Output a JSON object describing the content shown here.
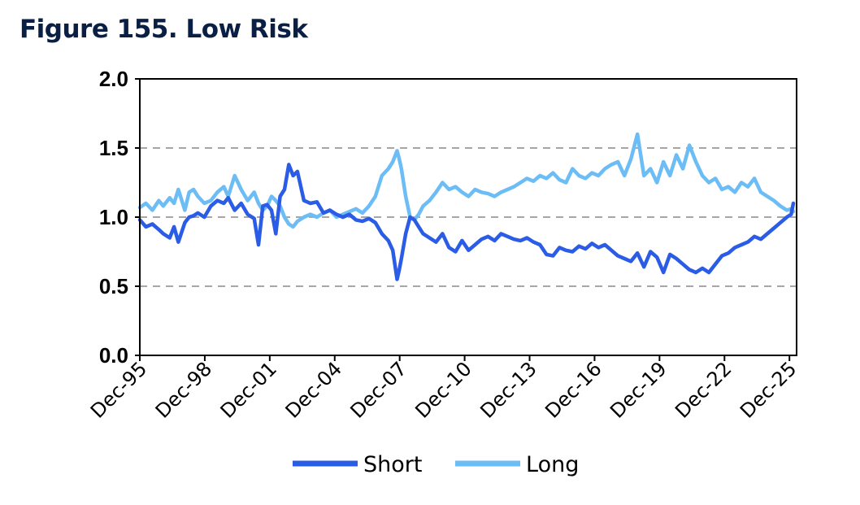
{
  "figure": {
    "title": "Figure 155. Low Risk"
  },
  "colors": {
    "short": "#2b5ce6",
    "long": "#6cbdf5",
    "grid": "#a6a6a6",
    "axis": "#000000"
  },
  "chart_data": {
    "type": "line",
    "title": "Figure 155. Low Risk",
    "xlabel": "",
    "ylabel": "",
    "x_range": [
      1995.92,
      2026.25
    ],
    "ylim": [
      0,
      2.0
    ],
    "yticks": [
      "0.0",
      "0.5",
      "1.0",
      "1.5",
      "2.0"
    ],
    "xticks": [
      "Dec-95",
      "Dec-98",
      "Dec-01",
      "Dec-04",
      "Dec-07",
      "Dec-10",
      "Dec-13",
      "Dec-16",
      "Dec-19",
      "Dec-22",
      "Dec-25"
    ],
    "grid": "horizontal dashed",
    "legend": "bottom",
    "series": [
      {
        "name": "Short",
        "color": "#2b5ce6",
        "x": [
          1995.92,
          1996.2,
          1996.5,
          1996.8,
          1997.0,
          1997.3,
          1997.5,
          1997.7,
          1998.0,
          1998.2,
          1998.4,
          1998.6,
          1998.9,
          1999.2,
          1999.5,
          1999.8,
          2000.0,
          2000.3,
          2000.6,
          2000.9,
          2001.2,
          2001.4,
          2001.6,
          2001.8,
          2002.0,
          2002.2,
          2002.4,
          2002.6,
          2002.8,
          2003.0,
          2003.2,
          2003.5,
          2003.8,
          2004.1,
          2004.4,
          2004.7,
          2005.0,
          2005.3,
          2005.6,
          2005.9,
          2006.2,
          2006.5,
          2006.8,
          2007.1,
          2007.4,
          2007.6,
          2007.8,
          2007.9,
          2008.0,
          2008.2,
          2008.4,
          2008.6,
          2008.8,
          2009.0,
          2009.3,
          2009.6,
          2009.9,
          2010.2,
          2010.5,
          2010.8,
          2011.1,
          2011.4,
          2011.7,
          2012.0,
          2012.3,
          2012.6,
          2012.9,
          2013.2,
          2013.5,
          2013.8,
          2014.1,
          2014.4,
          2014.7,
          2015.0,
          2015.3,
          2015.6,
          2015.9,
          2016.2,
          2016.5,
          2016.8,
          2017.1,
          2017.4,
          2017.7,
          2018.0,
          2018.3,
          2018.6,
          2018.9,
          2019.2,
          2019.5,
          2019.8,
          2020.1,
          2020.4,
          2020.7,
          2021.0,
          2021.3,
          2021.6,
          2021.9,
          2022.2,
          2022.5,
          2022.8,
          2023.1,
          2023.4,
          2023.7,
          2024.0,
          2024.3,
          2024.6,
          2024.9,
          2025.2,
          2025.5,
          2025.8,
          2026.0,
          2026.1
        ],
        "y": [
          0.98,
          0.93,
          0.95,
          0.91,
          0.88,
          0.85,
          0.93,
          0.82,
          0.96,
          1.0,
          1.01,
          1.03,
          1.0,
          1.08,
          1.12,
          1.1,
          1.14,
          1.05,
          1.1,
          1.02,
          0.99,
          0.8,
          1.08,
          1.09,
          1.05,
          0.88,
          1.15,
          1.2,
          1.38,
          1.3,
          1.33,
          1.12,
          1.1,
          1.11,
          1.03,
          1.05,
          1.02,
          1.0,
          1.02,
          0.98,
          0.97,
          0.99,
          0.96,
          0.88,
          0.83,
          0.76,
          0.55,
          0.62,
          0.7,
          0.88,
          1.0,
          0.98,
          0.93,
          0.88,
          0.85,
          0.82,
          0.88,
          0.78,
          0.75,
          0.83,
          0.76,
          0.8,
          0.84,
          0.86,
          0.83,
          0.88,
          0.86,
          0.84,
          0.83,
          0.85,
          0.82,
          0.8,
          0.73,
          0.72,
          0.78,
          0.76,
          0.75,
          0.79,
          0.77,
          0.81,
          0.78,
          0.8,
          0.76,
          0.72,
          0.7,
          0.68,
          0.74,
          0.64,
          0.75,
          0.71,
          0.6,
          0.73,
          0.7,
          0.66,
          0.62,
          0.6,
          0.63,
          0.6,
          0.66,
          0.72,
          0.74,
          0.78,
          0.8,
          0.82,
          0.86,
          0.84,
          0.88,
          0.92,
          0.96,
          1.0,
          1.02,
          1.1
        ]
      },
      {
        "name": "Long",
        "color": "#6cbdf5",
        "x": [
          1995.92,
          1996.2,
          1996.5,
          1996.8,
          1997.0,
          1997.3,
          1997.5,
          1997.7,
          1998.0,
          1998.2,
          1998.4,
          1998.6,
          1998.9,
          1999.2,
          1999.5,
          1999.8,
          2000.0,
          2000.3,
          2000.6,
          2000.9,
          2001.2,
          2001.4,
          2001.6,
          2001.8,
          2002.0,
          2002.2,
          2002.4,
          2002.6,
          2002.8,
          2003.0,
          2003.2,
          2003.5,
          2003.8,
          2004.1,
          2004.4,
          2004.7,
          2005.0,
          2005.3,
          2005.6,
          2005.9,
          2006.2,
          2006.5,
          2006.8,
          2007.1,
          2007.4,
          2007.6,
          2007.8,
          2007.9,
          2008.0,
          2008.2,
          2008.4,
          2008.6,
          2008.8,
          2009.0,
          2009.3,
          2009.6,
          2009.9,
          2010.2,
          2010.5,
          2010.8,
          2011.1,
          2011.4,
          2011.7,
          2012.0,
          2012.3,
          2012.6,
          2012.9,
          2013.2,
          2013.5,
          2013.8,
          2014.1,
          2014.4,
          2014.7,
          2015.0,
          2015.3,
          2015.6,
          2015.9,
          2016.2,
          2016.5,
          2016.8,
          2017.1,
          2017.4,
          2017.7,
          2018.0,
          2018.3,
          2018.6,
          2018.9,
          2019.2,
          2019.5,
          2019.8,
          2020.1,
          2020.4,
          2020.7,
          2021.0,
          2021.3,
          2021.6,
          2021.9,
          2022.2,
          2022.5,
          2022.8,
          2023.1,
          2023.4,
          2023.7,
          2024.0,
          2024.3,
          2024.6,
          2024.9,
          2025.2,
          2025.5,
          2025.8,
          2026.0,
          2026.1
        ],
        "y": [
          1.07,
          1.1,
          1.05,
          1.12,
          1.08,
          1.14,
          1.1,
          1.2,
          1.05,
          1.18,
          1.2,
          1.15,
          1.1,
          1.12,
          1.18,
          1.22,
          1.15,
          1.3,
          1.2,
          1.12,
          1.18,
          1.1,
          1.05,
          1.08,
          1.15,
          1.12,
          1.08,
          1.0,
          0.95,
          0.93,
          0.97,
          1.0,
          1.02,
          1.0,
          1.03,
          1.05,
          1.0,
          1.02,
          1.04,
          1.06,
          1.03,
          1.08,
          1.15,
          1.3,
          1.35,
          1.4,
          1.48,
          1.42,
          1.35,
          1.15,
          1.0,
          0.98,
          1.02,
          1.08,
          1.12,
          1.18,
          1.25,
          1.2,
          1.22,
          1.18,
          1.15,
          1.2,
          1.18,
          1.17,
          1.15,
          1.18,
          1.2,
          1.22,
          1.25,
          1.28,
          1.26,
          1.3,
          1.28,
          1.32,
          1.27,
          1.25,
          1.35,
          1.3,
          1.28,
          1.32,
          1.3,
          1.35,
          1.38,
          1.4,
          1.3,
          1.42,
          1.6,
          1.3,
          1.35,
          1.25,
          1.4,
          1.3,
          1.45,
          1.35,
          1.52,
          1.4,
          1.3,
          1.25,
          1.28,
          1.2,
          1.22,
          1.18,
          1.25,
          1.22,
          1.28,
          1.18,
          1.15,
          1.12,
          1.08,
          1.05,
          1.06,
          1.04
        ]
      }
    ]
  }
}
